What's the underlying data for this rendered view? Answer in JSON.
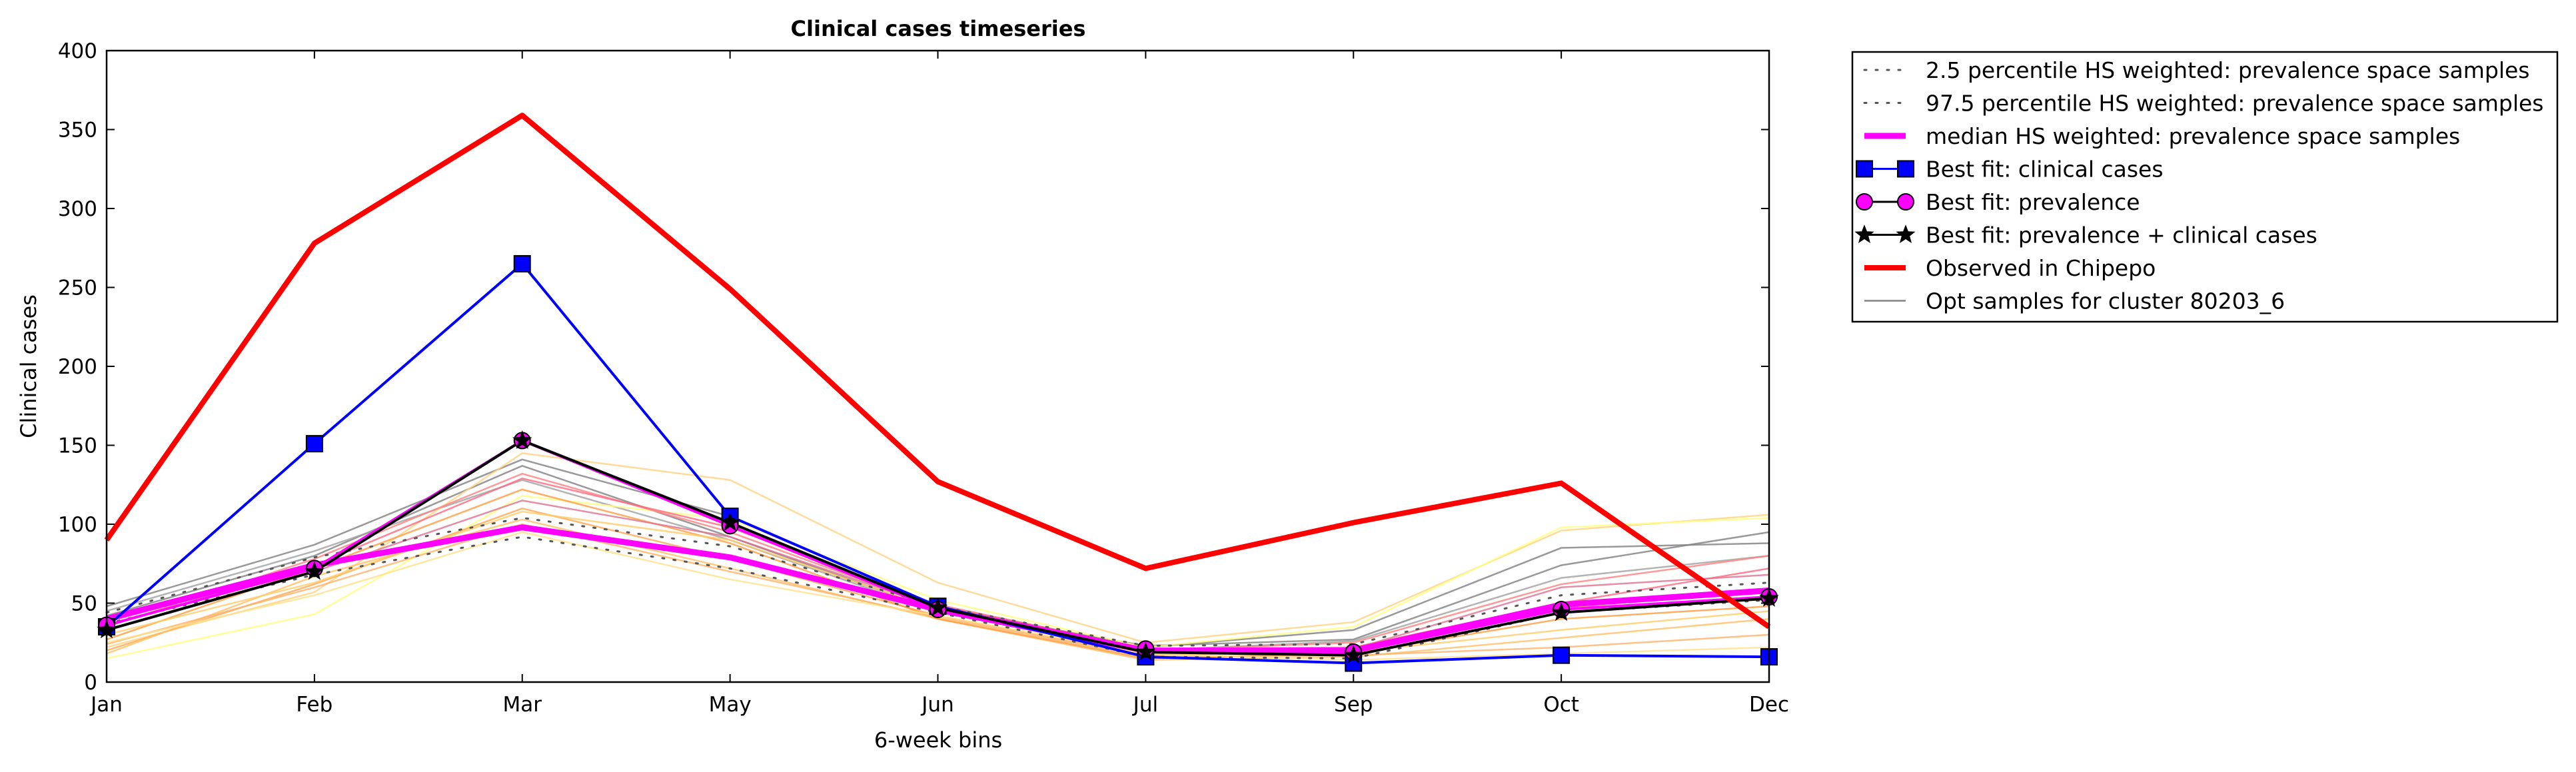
{
  "chart_data": {
    "type": "line",
    "title": "Clinical cases timeseries",
    "xlabel": "6-week bins",
    "ylabel": "Clinical cases",
    "categories": [
      "Jan",
      "Feb",
      "Mar",
      "May",
      "Jun",
      "Jul",
      "Sep",
      "Oct",
      "Dec"
    ],
    "ylim": [
      0,
      400
    ],
    "yticks": [
      0,
      50,
      100,
      150,
      200,
      250,
      300,
      350,
      400
    ],
    "grid": false,
    "legend_position": "outside-right",
    "background_samples": [
      {
        "color": "#808080",
        "values": [
          48,
          87,
          141,
          105,
          48,
          22,
          33,
          85,
          88
        ]
      },
      {
        "color": "#808080",
        "values": [
          42,
          80,
          137,
          92,
          45,
          23,
          27,
          74,
          95
        ]
      },
      {
        "color": "#a0a0a0",
        "values": [
          45,
          83,
          128,
          90,
          44,
          20,
          26,
          66,
          80
        ]
      },
      {
        "color": "#ffd27f",
        "values": [
          22,
          57,
          145,
          128,
          63,
          25,
          38,
          96,
          106
        ]
      },
      {
        "color": "#ffff80",
        "values": [
          15,
          43,
          118,
          103,
          52,
          22,
          35,
          98,
          104
        ]
      },
      {
        "color": "#ffa64d",
        "values": [
          20,
          62,
          110,
          78,
          42,
          17,
          20,
          47,
          58
        ]
      },
      {
        "color": "#ffbf66",
        "values": [
          18,
          67,
          103,
          72,
          40,
          14,
          16,
          28,
          40
        ]
      },
      {
        "color": "#ff9a3c",
        "values": [
          27,
          72,
          122,
          88,
          40,
          15,
          18,
          40,
          48
        ]
      },
      {
        "color": "#ff8080",
        "values": [
          35,
          78,
          132,
          95,
          47,
          20,
          25,
          62,
          80
        ]
      },
      {
        "color": "#ff6680",
        "values": [
          38,
          74,
          129,
          98,
          49,
          21,
          22,
          50,
          72
        ]
      },
      {
        "color": "#e07090",
        "values": [
          40,
          70,
          115,
          92,
          47,
          20,
          21,
          60,
          68
        ]
      },
      {
        "color": "#ffcc66",
        "values": [
          30,
          63,
          108,
          90,
          46,
          18,
          19,
          33,
          45
        ]
      },
      {
        "color": "#ffb266",
        "values": [
          24,
          60,
          100,
          70,
          41,
          16,
          17,
          22,
          30
        ]
      },
      {
        "color": "#ffe08a",
        "values": [
          25,
          55,
          95,
          65,
          42,
          18,
          14,
          18,
          22
        ]
      }
    ],
    "series": [
      {
        "name": "2.5 percentile HS weighted: prevalence space samples",
        "style": "dotted",
        "color": "#555555",
        "values": [
          37,
          68,
          92,
          72,
          44,
          16,
          15,
          44,
          52
        ]
      },
      {
        "name": "97.5 percentile HS weighted: prevalence space samples",
        "style": "dotted",
        "color": "#555555",
        "values": [
          44,
          79,
          104,
          86,
          48,
          23,
          24,
          55,
          63
        ]
      },
      {
        "name": "median HS weighted: prevalence space samples",
        "style": "solid",
        "color": "#ff00ff",
        "values": [
          40,
          74,
          98,
          79,
          46,
          20,
          20,
          49,
          58
        ]
      },
      {
        "name": "Best fit: clinical cases",
        "style": "solid",
        "color": "#0000ff",
        "marker": "square",
        "values": [
          35,
          151,
          265,
          105,
          48,
          16,
          12,
          17,
          16
        ]
      },
      {
        "name": "Best fit: prevalence",
        "style": "solid",
        "color": "#ff00ff",
        "marker": "circle",
        "values": [
          36,
          72,
          153,
          99,
          46,
          21,
          19,
          46,
          54
        ]
      },
      {
        "name": "Best fit: prevalence + clinical cases",
        "style": "solid",
        "color": "#000000",
        "marker": "star",
        "values": [
          33,
          70,
          153,
          101,
          47,
          19,
          17,
          44,
          53
        ]
      },
      {
        "name": "Observed in Chipepo",
        "style": "solid",
        "color": "#ff0000",
        "values": [
          90,
          278,
          359,
          249,
          127,
          72,
          101,
          126,
          35
        ]
      }
    ],
    "legend_entries": [
      {
        "label": "2.5 percentile HS weighted: prevalence space samples",
        "kind": "dotted",
        "color": "#555555"
      },
      {
        "label": "97.5 percentile HS weighted: prevalence space samples",
        "kind": "dotted",
        "color": "#555555"
      },
      {
        "label": "median HS weighted: prevalence space samples",
        "kind": "thick",
        "color": "#ff00ff"
      },
      {
        "label": "Best fit: clinical cases",
        "kind": "square",
        "color": "#0000ff"
      },
      {
        "label": "Best fit: prevalence",
        "kind": "circle",
        "color": "#ff00ff"
      },
      {
        "label": "Best fit: prevalence + clinical cases",
        "kind": "star",
        "color": "#000000"
      },
      {
        "label": "Observed in Chipepo",
        "kind": "thickline",
        "color": "#ff0000"
      },
      {
        "label": "Opt samples for cluster 80203_6",
        "kind": "thin",
        "color": "#808080"
      }
    ]
  }
}
